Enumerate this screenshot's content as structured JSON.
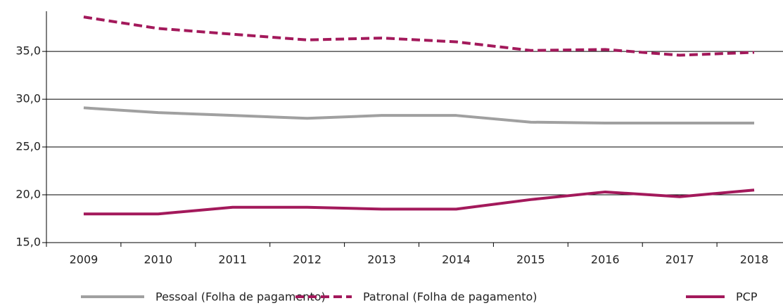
{
  "chart_data": {
    "type": "line",
    "categories": [
      "2009",
      "2010",
      "2011",
      "2012",
      "2013",
      "2014",
      "2015",
      "2016",
      "2017",
      "2018"
    ],
    "series": [
      {
        "name": "Pessoal (Folha de pagamento)",
        "color": "#a0a0a0",
        "dash": false,
        "values": [
          29.1,
          28.6,
          28.3,
          28.0,
          28.3,
          28.3,
          27.6,
          27.5,
          27.5,
          27.5
        ]
      },
      {
        "name": "Patronal (Folha de pagamento)",
        "color": "#a3195b",
        "dash": true,
        "values": [
          38.6,
          37.4,
          36.8,
          36.2,
          36.4,
          36.0,
          35.1,
          35.2,
          34.6,
          34.9
        ]
      },
      {
        "name": "PCP",
        "color": "#a3195b",
        "dash": false,
        "values": [
          18.0,
          18.0,
          18.7,
          18.7,
          18.5,
          18.5,
          19.5,
          20.3,
          19.8,
          20.5
        ]
      }
    ],
    "ylim": [
      15,
      39.2
    ],
    "yticks": [
      {
        "value": 15,
        "label": "15,0"
      },
      {
        "value": 20,
        "label": "20,0"
      },
      {
        "value": 25,
        "label": "25,0"
      },
      {
        "value": 30,
        "label": "30,0"
      },
      {
        "value": 35,
        "label": "35,0"
      }
    ],
    "grid": true,
    "legend": "bottom"
  }
}
